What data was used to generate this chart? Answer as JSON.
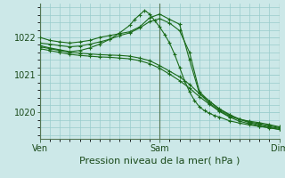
{
  "bg_color": "#cce8e8",
  "grid_color": "#99cccc",
  "line_color": "#1a6b1a",
  "marker_color": "#1a6b1a",
  "xlabel": "Pression niveau de la mer( hPa )",
  "xlabel_fontsize": 8,
  "ylabel_fontsize": 7,
  "tick_fontsize": 7,
  "yticks": [
    1020,
    1021,
    1022
  ],
  "ylim": [
    1019.3,
    1022.9
  ],
  "xlim": [
    0,
    48
  ],
  "xtick_positions": [
    0,
    24,
    48
  ],
  "xtick_labels": [
    "Ven",
    "Sam",
    "Dim"
  ],
  "vlines": [
    24
  ],
  "series": [
    {
      "x": [
        0,
        2,
        4,
        6,
        8,
        10,
        12,
        14,
        16,
        18,
        20,
        22,
        24,
        26,
        28,
        30,
        32,
        34,
        36,
        38,
        40,
        42,
        44,
        46,
        48
      ],
      "y": [
        1022.0,
        1021.92,
        1021.88,
        1021.85,
        1021.88,
        1021.92,
        1022.0,
        1022.05,
        1022.1,
        1022.15,
        1022.28,
        1022.52,
        1022.62,
        1022.48,
        1022.35,
        1021.4,
        1020.5,
        1020.25,
        1020.05,
        1019.9,
        1019.82,
        1019.77,
        1019.73,
        1019.68,
        1019.62
      ]
    },
    {
      "x": [
        0,
        2,
        4,
        6,
        8,
        10,
        12,
        14,
        16,
        18,
        20,
        22,
        24,
        26,
        28,
        30,
        32,
        34,
        36,
        38,
        40,
        42,
        44,
        46,
        48
      ],
      "y": [
        1021.75,
        1021.7,
        1021.65,
        1021.6,
        1021.58,
        1021.56,
        1021.54,
        1021.53,
        1021.52,
        1021.5,
        1021.45,
        1021.38,
        1021.25,
        1021.1,
        1020.95,
        1020.75,
        1020.5,
        1020.3,
        1020.1,
        1019.95,
        1019.82,
        1019.73,
        1019.67,
        1019.62,
        1019.58
      ]
    },
    {
      "x": [
        0,
        2,
        4,
        6,
        8,
        10,
        12,
        14,
        16,
        18,
        20,
        22,
        24,
        26,
        28,
        30,
        32,
        34,
        36,
        38,
        40,
        42,
        44,
        46,
        48
      ],
      "y": [
        1021.7,
        1021.65,
        1021.6,
        1021.55,
        1021.52,
        1021.5,
        1021.48,
        1021.47,
        1021.45,
        1021.43,
        1021.38,
        1021.3,
        1021.18,
        1021.02,
        1020.85,
        1020.65,
        1020.42,
        1020.22,
        1020.03,
        1019.88,
        1019.77,
        1019.7,
        1019.64,
        1019.59,
        1019.55
      ]
    },
    {
      "x": [
        0,
        2,
        4,
        6,
        8,
        10,
        12,
        14,
        16,
        18,
        20,
        22,
        24,
        26,
        28,
        30,
        32,
        34,
        36,
        38,
        40,
        42,
        44,
        46,
        48
      ],
      "y": [
        1021.85,
        1021.82,
        1021.78,
        1021.75,
        1021.77,
        1021.82,
        1021.88,
        1021.95,
        1022.05,
        1022.12,
        1022.25,
        1022.42,
        1022.5,
        1022.38,
        1022.18,
        1021.6,
        1020.55,
        1020.3,
        1020.08,
        1019.93,
        1019.83,
        1019.75,
        1019.7,
        1019.65,
        1019.6
      ]
    },
    {
      "x": [
        0,
        2,
        4,
        6,
        8,
        10,
        12,
        14,
        16,
        18,
        19,
        20,
        21,
        22,
        23,
        24,
        25,
        26,
        27,
        28,
        29,
        30,
        31,
        32,
        33,
        34,
        35,
        36,
        38,
        40,
        42,
        44,
        46,
        48
      ],
      "y": [
        1021.78,
        1021.72,
        1021.67,
        1021.62,
        1021.65,
        1021.72,
        1021.82,
        1021.95,
        1022.12,
        1022.32,
        1022.48,
        1022.6,
        1022.72,
        1022.62,
        1022.45,
        1022.28,
        1022.08,
        1021.85,
        1021.55,
        1021.2,
        1020.85,
        1020.55,
        1020.32,
        1020.15,
        1020.05,
        1019.98,
        1019.92,
        1019.88,
        1019.78,
        1019.72,
        1019.67,
        1019.63,
        1019.6,
        1019.55
      ]
    }
  ]
}
